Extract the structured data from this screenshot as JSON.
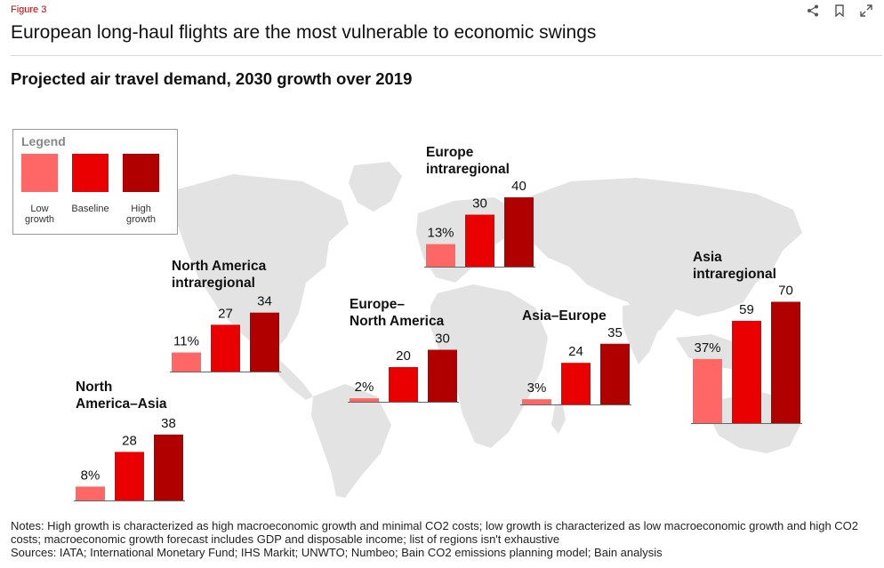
{
  "header": {
    "figure_label": "Figure 3",
    "title": "European long-haul flights are the most vulnerable to economic swings",
    "subtitle": "Projected air travel demand, 2030 growth over 2019",
    "icons": [
      "share-icon",
      "bookmark-icon",
      "expand-icon"
    ]
  },
  "colors": {
    "low": "#ff6666",
    "baseline": "#ea0000",
    "high": "#b00000",
    "map": "#e3e3e3",
    "axis": "#666666"
  },
  "legend": {
    "title": "Legend",
    "items": [
      {
        "key": "low",
        "label_lines": [
          "Low",
          "growth"
        ]
      },
      {
        "key": "baseline",
        "label_lines": [
          "Baseline"
        ]
      },
      {
        "key": "high",
        "label_lines": [
          "High",
          "growth"
        ]
      }
    ]
  },
  "chart_data": {
    "type": "bar",
    "title": "Projected air travel demand, 2030 growth over 2019",
    "unit": "%",
    "series": [
      {
        "name": "Low growth",
        "key": "low"
      },
      {
        "name": "Baseline",
        "key": "baseline"
      },
      {
        "name": "High growth",
        "key": "high"
      }
    ],
    "groups": [
      {
        "name_lines": [
          "Europe",
          "intraregional"
        ],
        "values": [
          13,
          30,
          40
        ],
        "labels": [
          "13%",
          "30",
          "40"
        ]
      },
      {
        "name_lines": [
          "North America",
          "intraregional"
        ],
        "values": [
          11,
          27,
          34
        ],
        "labels": [
          "11%",
          "27",
          "34"
        ]
      },
      {
        "name_lines": [
          "Europe–",
          "North America"
        ],
        "values": [
          2,
          20,
          30
        ],
        "labels": [
          "2%",
          "20",
          "30"
        ]
      },
      {
        "name_lines": [
          "Asia–Europe"
        ],
        "values": [
          3,
          24,
          35
        ],
        "labels": [
          "3%",
          "24",
          "35"
        ]
      },
      {
        "name_lines": [
          "Asia",
          "intraregional"
        ],
        "values": [
          37,
          59,
          70
        ],
        "labels": [
          "37%",
          "59",
          "70"
        ]
      },
      {
        "name_lines": [
          "North",
          "America–Asia"
        ],
        "values": [
          8,
          28,
          38
        ],
        "labels": [
          "8%",
          "28",
          "38"
        ]
      }
    ]
  },
  "notes": {
    "notes_text": "Notes: High growth is characterized as high macroeconomic growth and minimal CO2 costs; low growth is characterized as low macroeconomic growth and high CO2 costs; macroeconomic growth forecast includes GDP and disposable income; list of regions isn't exhaustive",
    "sources_text": "Sources: IATA; International Monetary Fund; IHS Markit; UNWTO; Numbeo; Bain CO2 emissions planning model; Bain analysis"
  }
}
